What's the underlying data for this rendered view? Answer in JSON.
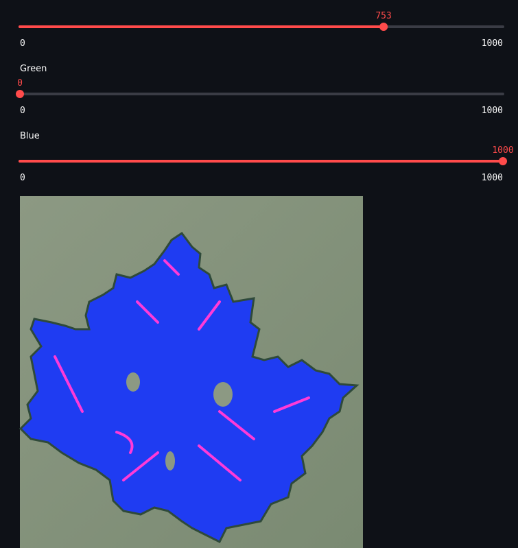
{
  "sliders": [
    {
      "value": 753,
      "min": 0,
      "max": 1000
    },
    {
      "label": "Green",
      "value": 0,
      "min": 0,
      "max": 1000
    },
    {
      "label": "Blue",
      "value": 1000,
      "min": 0,
      "max": 1000
    }
  ]
}
